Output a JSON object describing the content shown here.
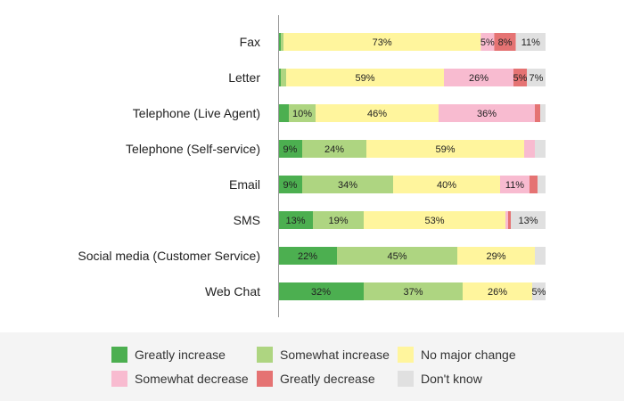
{
  "chart_data": {
    "type": "bar",
    "orientation": "horizontal",
    "stacked": true,
    "title": "",
    "xlabel": "",
    "ylabel": "",
    "xlim": [
      0,
      100
    ],
    "grid": false,
    "legend_position": "bottom",
    "categories": [
      "Fax",
      "Letter",
      "Telephone (Live Agent)",
      "Telephone (Self-service)",
      "Email",
      "SMS",
      "Social media (Customer Service)",
      "Web Chat"
    ],
    "series": [
      {
        "name": "Greatly increase",
        "color": "#4caf50",
        "values": [
          1,
          1,
          4,
          9,
          9,
          13,
          22,
          32
        ],
        "labels": [
          "",
          "",
          "",
          "9%",
          "9%",
          "13%",
          "22%",
          "32%"
        ]
      },
      {
        "name": "Somewhat increase",
        "color": "#aed581",
        "values": [
          1,
          2,
          10,
          24,
          34,
          19,
          45,
          37
        ],
        "labels": [
          "",
          "",
          "10%",
          "24%",
          "34%",
          "19%",
          "45%",
          "37%"
        ]
      },
      {
        "name": "No major change",
        "color": "#fff59d",
        "values": [
          73,
          59,
          46,
          59,
          40,
          53,
          29,
          26
        ],
        "labels": [
          "73%",
          "59%",
          "46%",
          "59%",
          "40%",
          "53%",
          "29%",
          "26%"
        ]
      },
      {
        "name": "Somewhat decrease",
        "color": "#f8bbd0",
        "values": [
          5,
          26,
          36,
          4,
          11,
          1,
          0,
          0
        ],
        "labels": [
          "5%",
          "26%",
          "36%",
          "",
          "11%",
          "",
          "",
          ""
        ]
      },
      {
        "name": "Greatly decrease",
        "color": "#e57373",
        "values": [
          8,
          5,
          2,
          0,
          3,
          1,
          0,
          0
        ],
        "labels": [
          "8%",
          "5%",
          "",
          "",
          "",
          "",
          "",
          ""
        ]
      },
      {
        "name": "Don't know",
        "color": "#e0e0e0",
        "values": [
          11,
          7,
          2,
          4,
          3,
          13,
          4,
          5
        ],
        "labels": [
          "11%",
          "7%",
          "",
          "",
          "",
          "13%",
          "",
          "5%"
        ]
      }
    ]
  }
}
